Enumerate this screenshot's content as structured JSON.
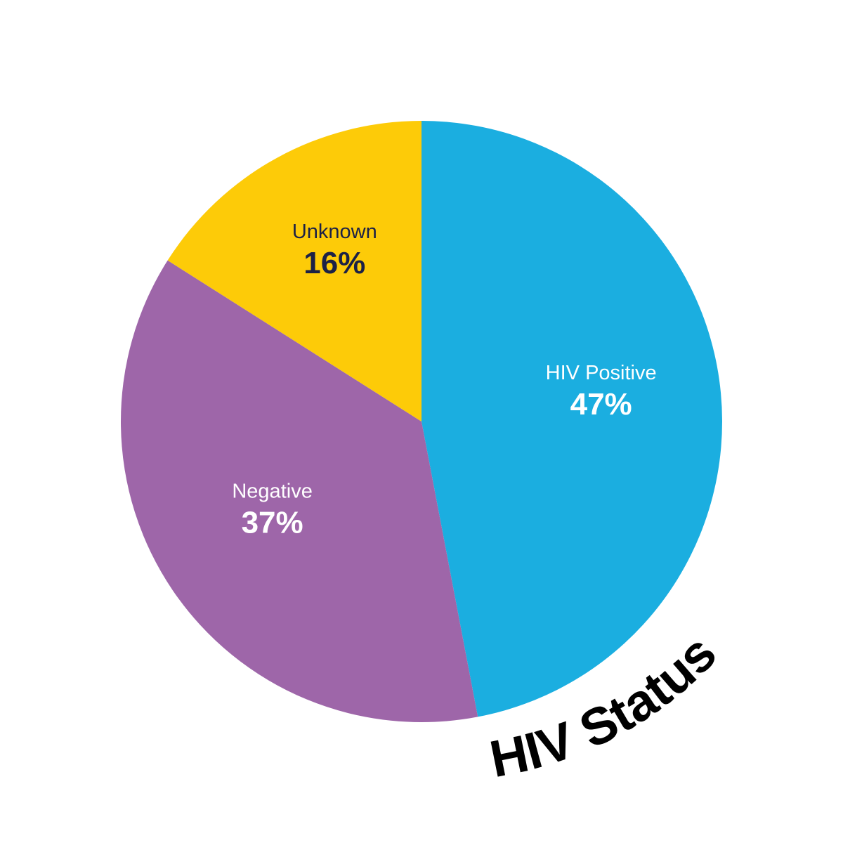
{
  "chart_data": {
    "type": "pie",
    "title": "HIV Status",
    "start_angle_deg": 0,
    "direction": "clockwise",
    "slices": [
      {
        "label": "HIV Positive",
        "value": 47,
        "display": "47%",
        "color": "#1baee0",
        "text_color": "#ffffff"
      },
      {
        "label": "Negative",
        "value": 37,
        "display": "37%",
        "color": "#9e66a9",
        "text_color": "#ffffff"
      },
      {
        "label": "Unknown",
        "value": 16,
        "display": "16%",
        "color": "#fdcb08",
        "text_color": "#1c2146"
      }
    ]
  }
}
